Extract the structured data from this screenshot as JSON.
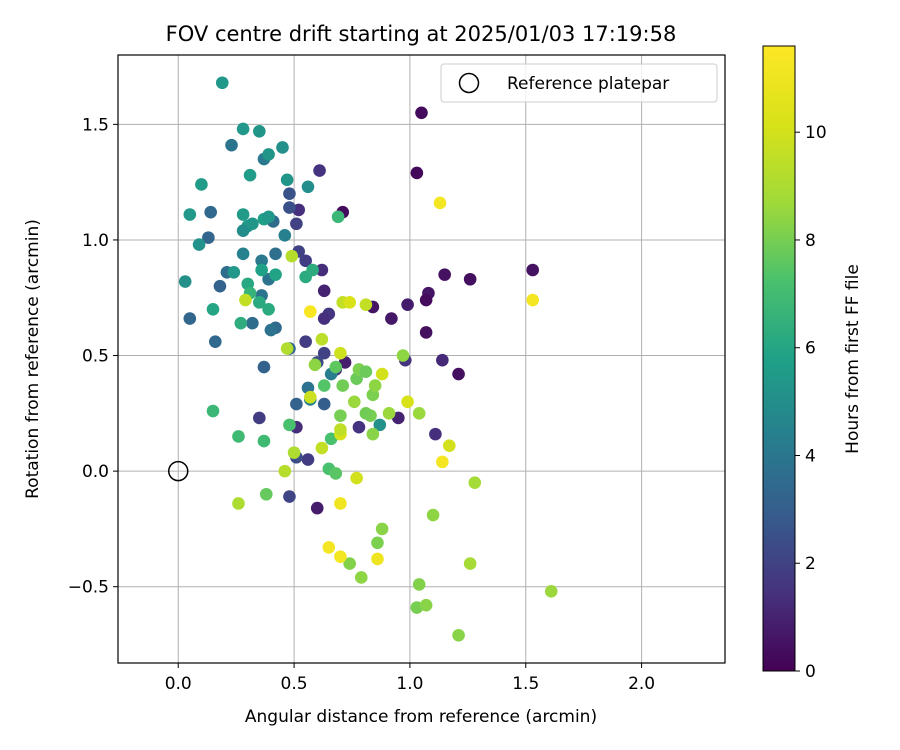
{
  "chart_data": {
    "type": "scatter",
    "title": "FOV centre drift starting at 2025/01/03 17:19:58",
    "xlabel": "Angular distance from reference (arcmin)",
    "ylabel": "Rotation from reference (arcmin)",
    "xlim": [
      -0.26,
      2.36
    ],
    "ylim": [
      -0.83,
      1.8
    ],
    "xticks": [
      0.0,
      0.5,
      1.0,
      1.5,
      2.0
    ],
    "xtick_labels": [
      "0.0",
      "0.5",
      "1.0",
      "1.5",
      "2.0"
    ],
    "yticks": [
      -0.5,
      0.0,
      0.5,
      1.0,
      1.5
    ],
    "ytick_labels": [
      "−0.5",
      "0.0",
      "0.5",
      "1.0",
      "1.5"
    ],
    "grid": true,
    "legend": {
      "placement": "upper right",
      "entries": [
        "Reference platepar"
      ]
    },
    "reference_point": {
      "x": 0.0,
      "y": 0.0
    },
    "colorbar": {
      "label": "Hours from first FF file",
      "range": [
        0,
        11.6
      ],
      "ticks": [
        0,
        2,
        4,
        6,
        8,
        10
      ],
      "tick_labels": [
        "0",
        "2",
        "4",
        "6",
        "8",
        "10"
      ],
      "colormap": "viridis"
    },
    "points": [
      {
        "x": 1.05,
        "y": 1.55,
        "c": 0.3
      },
      {
        "x": 1.03,
        "y": 1.29,
        "c": 0.2
      },
      {
        "x": 0.71,
        "y": 1.12,
        "c": 0.3
      },
      {
        "x": 1.15,
        "y": 0.85,
        "c": 0.5
      },
      {
        "x": 1.26,
        "y": 0.83,
        "c": 0.4
      },
      {
        "x": 1.53,
        "y": 0.87,
        "c": 0.5
      },
      {
        "x": 1.08,
        "y": 0.77,
        "c": 0.6
      },
      {
        "x": 1.07,
        "y": 0.74,
        "c": 0.3
      },
      {
        "x": 0.99,
        "y": 0.72,
        "c": 0.8
      },
      {
        "x": 0.84,
        "y": 0.71,
        "c": 0.6
      },
      {
        "x": 0.92,
        "y": 0.66,
        "c": 0.7
      },
      {
        "x": 1.07,
        "y": 0.6,
        "c": 0.4
      },
      {
        "x": 1.14,
        "y": 0.48,
        "c": 1.2
      },
      {
        "x": 0.98,
        "y": 0.48,
        "c": 1.5
      },
      {
        "x": 1.21,
        "y": 0.42,
        "c": 0.4
      },
      {
        "x": 0.72,
        "y": 0.47,
        "c": 0.9
      },
      {
        "x": 0.95,
        "y": 0.23,
        "c": 1.0
      },
      {
        "x": 1.11,
        "y": 0.16,
        "c": 1.4
      },
      {
        "x": 0.78,
        "y": 0.19,
        "c": 1.5
      },
      {
        "x": 0.61,
        "y": 1.3,
        "c": 1.5
      },
      {
        "x": 0.63,
        "y": 0.78,
        "c": 1.0
      },
      {
        "x": 0.65,
        "y": 0.68,
        "c": 1.6
      },
      {
        "x": 0.63,
        "y": 0.66,
        "c": 1.4
      },
      {
        "x": 0.62,
        "y": 0.87,
        "c": 1.3
      },
      {
        "x": 0.55,
        "y": 0.91,
        "c": 1.8
      },
      {
        "x": 0.52,
        "y": 0.95,
        "c": 2.0
      },
      {
        "x": 0.52,
        "y": 1.13,
        "c": 1.4
      },
      {
        "x": 0.51,
        "y": 1.07,
        "c": 2.0
      },
      {
        "x": 0.48,
        "y": 1.14,
        "c": 2.5
      },
      {
        "x": 0.48,
        "y": 1.2,
        "c": 2.6
      },
      {
        "x": 0.55,
        "y": 0.56,
        "c": 1.8
      },
      {
        "x": 0.63,
        "y": 0.51,
        "c": 2.0
      },
      {
        "x": 0.68,
        "y": 0.44,
        "c": 1.5
      },
      {
        "x": 0.6,
        "y": 0.47,
        "c": 2.2
      },
      {
        "x": 0.63,
        "y": 0.29,
        "c": 3.0
      },
      {
        "x": 0.51,
        "y": 0.29,
        "c": 3.2
      },
      {
        "x": 0.51,
        "y": 0.19,
        "c": 1.3
      },
      {
        "x": 0.56,
        "y": 0.05,
        "c": 1.8
      },
      {
        "x": 0.51,
        "y": 0.06,
        "c": 2.4
      },
      {
        "x": 0.35,
        "y": 0.23,
        "c": 1.8
      },
      {
        "x": 0.48,
        "y": -0.11,
        "c": 2.1
      },
      {
        "x": 0.6,
        "y": -0.16,
        "c": 0.8
      },
      {
        "x": 0.37,
        "y": 0.45,
        "c": 3.2
      },
      {
        "x": 0.42,
        "y": 0.62,
        "c": 3.5
      },
      {
        "x": 0.48,
        "y": 0.53,
        "c": 3.3
      },
      {
        "x": 0.16,
        "y": 0.56,
        "c": 3.4
      },
      {
        "x": 0.05,
        "y": 0.66,
        "c": 3.3
      },
      {
        "x": 0.18,
        "y": 0.8,
        "c": 3.2
      },
      {
        "x": 0.21,
        "y": 0.86,
        "c": 3.6
      },
      {
        "x": 0.13,
        "y": 1.01,
        "c": 3.3
      },
      {
        "x": 0.14,
        "y": 1.12,
        "c": 3.4
      },
      {
        "x": 0.23,
        "y": 1.41,
        "c": 3.9
      },
      {
        "x": 0.37,
        "y": 1.35,
        "c": 4.1
      },
      {
        "x": 0.41,
        "y": 1.08,
        "c": 3.6
      },
      {
        "x": 0.46,
        "y": 1.02,
        "c": 4.4
      },
      {
        "x": 0.42,
        "y": 0.94,
        "c": 3.7
      },
      {
        "x": 0.36,
        "y": 0.91,
        "c": 4.1
      },
      {
        "x": 0.28,
        "y": 0.94,
        "c": 4.4
      },
      {
        "x": 0.32,
        "y": 0.64,
        "c": 3.6
      },
      {
        "x": 0.4,
        "y": 0.61,
        "c": 3.8
      },
      {
        "x": 0.56,
        "y": 0.36,
        "c": 3.8
      },
      {
        "x": 0.66,
        "y": 0.42,
        "c": 4.3
      },
      {
        "x": 0.57,
        "y": 0.31,
        "c": 4.5
      },
      {
        "x": 0.87,
        "y": 0.2,
        "c": 5.1
      },
      {
        "x": 0.36,
        "y": 0.76,
        "c": 3.9
      },
      {
        "x": 0.39,
        "y": 0.83,
        "c": 3.9
      },
      {
        "x": 0.03,
        "y": 0.82,
        "c": 5.1
      },
      {
        "x": 0.09,
        "y": 0.98,
        "c": 5.2
      },
      {
        "x": 0.05,
        "y": 1.11,
        "c": 5.4
      },
      {
        "x": 0.1,
        "y": 1.24,
        "c": 5.6
      },
      {
        "x": 0.19,
        "y": 1.68,
        "c": 5.4
      },
      {
        "x": 0.28,
        "y": 1.48,
        "c": 5.4
      },
      {
        "x": 0.35,
        "y": 1.47,
        "c": 5.3
      },
      {
        "x": 0.39,
        "y": 1.37,
        "c": 5.3
      },
      {
        "x": 0.45,
        "y": 1.4,
        "c": 5.1
      },
      {
        "x": 0.47,
        "y": 1.26,
        "c": 5.3
      },
      {
        "x": 0.56,
        "y": 1.23,
        "c": 5.0
      },
      {
        "x": 0.31,
        "y": 1.28,
        "c": 5.6
      },
      {
        "x": 0.28,
        "y": 1.11,
        "c": 5.5
      },
      {
        "x": 0.3,
        "y": 1.06,
        "c": 5.5
      },
      {
        "x": 0.28,
        "y": 1.04,
        "c": 4.9
      },
      {
        "x": 0.37,
        "y": 1.09,
        "c": 5.7
      },
      {
        "x": 0.39,
        "y": 1.1,
        "c": 5.4
      },
      {
        "x": 0.32,
        "y": 1.07,
        "c": 5.3
      },
      {
        "x": 0.24,
        "y": 0.86,
        "c": 5.4
      },
      {
        "x": 0.36,
        "y": 0.87,
        "c": 5.8
      },
      {
        "x": 0.42,
        "y": 0.85,
        "c": 5.9
      },
      {
        "x": 0.55,
        "y": 0.84,
        "c": 6.2
      },
      {
        "x": 0.58,
        "y": 0.87,
        "c": 6.3
      },
      {
        "x": 0.3,
        "y": 0.81,
        "c": 6.1
      },
      {
        "x": 0.31,
        "y": 0.77,
        "c": 6.6
      },
      {
        "x": 0.35,
        "y": 0.73,
        "c": 6.2
      },
      {
        "x": 0.39,
        "y": 0.7,
        "c": 6.2
      },
      {
        "x": 0.15,
        "y": 0.7,
        "c": 6.0
      },
      {
        "x": 0.27,
        "y": 0.64,
        "c": 6.3
      },
      {
        "x": 0.69,
        "y": 1.1,
        "c": 6.8
      },
      {
        "x": 0.15,
        "y": 0.26,
        "c": 6.8
      },
      {
        "x": 0.26,
        "y": 0.15,
        "c": 6.9
      },
      {
        "x": 0.37,
        "y": 0.13,
        "c": 6.9
      },
      {
        "x": 0.48,
        "y": 0.2,
        "c": 7.2
      },
      {
        "x": 0.66,
        "y": 0.14,
        "c": 7.2
      },
      {
        "x": 0.65,
        "y": 0.01,
        "c": 7.2
      },
      {
        "x": 0.68,
        "y": -0.01,
        "c": 7.5
      },
      {
        "x": 0.38,
        "y": -0.1,
        "c": 7.7
      },
      {
        "x": 0.63,
        "y": 0.37,
        "c": 7.4
      },
      {
        "x": 0.68,
        "y": 0.45,
        "c": 7.6
      },
      {
        "x": 0.71,
        "y": 0.37,
        "c": 7.9
      },
      {
        "x": 0.77,
        "y": 0.4,
        "c": 7.8
      },
      {
        "x": 0.78,
        "y": 0.44,
        "c": 8.1
      },
      {
        "x": 0.81,
        "y": 0.43,
        "c": 7.8
      },
      {
        "x": 0.83,
        "y": 0.24,
        "c": 8.0
      },
      {
        "x": 0.81,
        "y": 0.25,
        "c": 7.9
      },
      {
        "x": 0.7,
        "y": 0.24,
        "c": 8.0
      },
      {
        "x": 0.84,
        "y": 0.16,
        "c": 8.3
      },
      {
        "x": 0.84,
        "y": 0.33,
        "c": 8.1
      },
      {
        "x": 0.85,
        "y": 0.37,
        "c": 8.4
      },
      {
        "x": 0.76,
        "y": 0.3,
        "c": 8.6
      },
      {
        "x": 0.59,
        "y": 0.46,
        "c": 8.4
      },
      {
        "x": 0.97,
        "y": 0.5,
        "c": 8.4
      },
      {
        "x": 0.91,
        "y": 0.25,
        "c": 8.6
      },
      {
        "x": 1.04,
        "y": 0.25,
        "c": 8.6
      },
      {
        "x": 0.47,
        "y": 0.53,
        "c": 9.2
      },
      {
        "x": 0.49,
        "y": 0.93,
        "c": 9.3
      },
      {
        "x": 0.74,
        "y": -0.4,
        "c": 8.2
      },
      {
        "x": 0.79,
        "y": -0.46,
        "c": 8.4
      },
      {
        "x": 0.86,
        "y": -0.31,
        "c": 8.1
      },
      {
        "x": 0.88,
        "y": -0.25,
        "c": 8.3
      },
      {
        "x": 1.1,
        "y": -0.19,
        "c": 8.4
      },
      {
        "x": 1.28,
        "y": -0.05,
        "c": 8.8
      },
      {
        "x": 1.26,
        "y": -0.4,
        "c": 8.8
      },
      {
        "x": 1.04,
        "y": -0.49,
        "c": 8.2
      },
      {
        "x": 1.03,
        "y": -0.59,
        "c": 8.0
      },
      {
        "x": 1.07,
        "y": -0.58,
        "c": 8.3
      },
      {
        "x": 1.21,
        "y": -0.71,
        "c": 8.3
      },
      {
        "x": 1.61,
        "y": -0.52,
        "c": 8.6
      },
      {
        "x": 0.26,
        "y": -0.14,
        "c": 9.0
      },
      {
        "x": 0.46,
        "y": 0.0,
        "c": 9.3
      },
      {
        "x": 0.5,
        "y": 0.08,
        "c": 9.1
      },
      {
        "x": 0.62,
        "y": 0.1,
        "c": 9.6
      },
      {
        "x": 0.77,
        "y": -0.03,
        "c": 10.0
      },
      {
        "x": 0.57,
        "y": 0.32,
        "c": 9.8
      },
      {
        "x": 0.62,
        "y": 0.57,
        "c": 9.4
      },
      {
        "x": 0.7,
        "y": 0.51,
        "c": 9.9
      },
      {
        "x": 0.71,
        "y": 0.73,
        "c": 9.6
      },
      {
        "x": 0.74,
        "y": 0.73,
        "c": 10.2
      },
      {
        "x": 0.81,
        "y": 0.72,
        "c": 9.6
      },
      {
        "x": 0.88,
        "y": 0.42,
        "c": 10.0
      },
      {
        "x": 0.99,
        "y": 0.3,
        "c": 10.2
      },
      {
        "x": 1.17,
        "y": 0.11,
        "c": 10.0
      },
      {
        "x": 0.7,
        "y": 0.16,
        "c": 10.1
      },
      {
        "x": 0.7,
        "y": 0.18,
        "c": 9.5
      },
      {
        "x": 0.29,
        "y": 0.74,
        "c": 9.6
      },
      {
        "x": 1.13,
        "y": 1.16,
        "c": 11.2
      },
      {
        "x": 1.53,
        "y": 0.74,
        "c": 11.3
      },
      {
        "x": 0.57,
        "y": 0.69,
        "c": 11.4
      },
      {
        "x": 1.14,
        "y": 0.04,
        "c": 11.3
      },
      {
        "x": 0.7,
        "y": -0.14,
        "c": 11.1
      },
      {
        "x": 0.65,
        "y": -0.33,
        "c": 11.3
      },
      {
        "x": 0.7,
        "y": -0.37,
        "c": 11.2
      },
      {
        "x": 0.86,
        "y": -0.38,
        "c": 11.0
      }
    ]
  }
}
